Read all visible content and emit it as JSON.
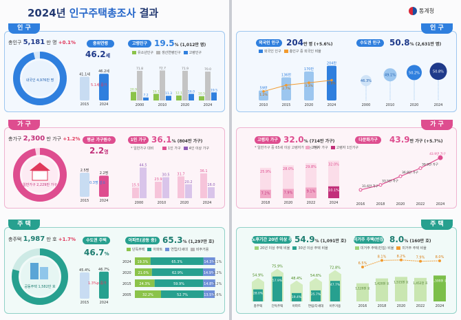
{
  "header": {
    "title_prefix": "2024년 ",
    "title_highlight": "인구주택총조사",
    "title_suffix": " 결과",
    "org": "통계청"
  },
  "sections": {
    "population": "인 구",
    "household": "가 구",
    "housing": "주 택"
  },
  "pop": {
    "kpi_label": "총인구",
    "kpi_value": "5,181",
    "kpi_unit": "만 명",
    "kpi_change": "+0.1%",
    "donut_label": "내국인 4,976만 명",
    "core_pill": "중위연령",
    "core_value": "46.2",
    "core_unit": "세",
    "core_note": "5.1세 증가",
    "aging_pill": "고령인구",
    "aging_value": "19.5",
    "aging_unit": "% (1,012만 명)",
    "aging_legend": [
      "유소년인구",
      "생산연령인구",
      "고령인구"
    ],
    "foreign_pill": "외국인 인구",
    "foreign_value": "204",
    "foreign_unit": "만 명 (+5.6%)",
    "foreign_legend": [
      "외국인 인구",
      "총인구 중 외국인 비율"
    ],
    "metro_pill": "수도권 인구",
    "metro_value": "50.8",
    "metro_unit": "% (2,631만 명)"
  },
  "hh": {
    "kpi_label": "총가구",
    "kpi_value": "2,300",
    "kpi_unit": "만 가구",
    "kpi_change": "+1.2%",
    "donut_label": "일반가구 2,229만 가구",
    "size_pill": "평균 가구원수",
    "size_value": "2.2",
    "size_unit": "명",
    "size_note": "0.3명 감소",
    "one_pill": "1인 가구",
    "one_value": "36.1",
    "one_unit": "% (804만 가구)",
    "one_note": "* 일반가구 대비",
    "one_legend": [
      "1인 가구",
      "4인 이상 가구"
    ],
    "elder_pill": "고령자 가구",
    "elder_value": "32.0",
    "elder_unit": "% (714만 가구)",
    "elder_note": "* 일반가구 중 65세 이상 고령자가 있는 가구",
    "elder_legend": [
      "고령자 가구",
      "고령자 1인가구"
    ],
    "multi_pill": "다문화가구",
    "multi_value": "43.9",
    "multi_unit": "만 가구 (+5.7%)"
  },
  "hs": {
    "kpi_label": "총주택",
    "kpi_value": "1,987",
    "kpi_unit": "만 호",
    "kpi_change": "+1.7%",
    "donut_label": "공동주택 1,582만 호",
    "apt_pill": "수도권 주택",
    "apt_value": "46.7",
    "apt_unit": "%",
    "apt_note": "1.3%p 증가",
    "share_pill": "아파트(공동 중)",
    "share_value": "65.3",
    "share_unit": "% (1,297만 호)",
    "share_legend": [
      "단독주택",
      "아파트",
      "연립/다세대",
      "비주거용"
    ],
    "old_pill": "노후기간 20년 이상 주택",
    "old_value": "54.9",
    "old_unit": "% (1,091만 호)",
    "old_legend": [
      "20년 이상 주택 비율",
      "30년 이상 주택 비율"
    ],
    "vacant_pill": "미거주 주택(빈집)",
    "vacant_value": "8.0",
    "vacant_unit": "% (160만 호)",
    "vacant_legend": [
      "미거주 주택(빈집) 비율",
      "미거주 주택 비율"
    ]
  },
  "colors": {
    "blue": "#2f7fde",
    "pink": "#de4d8f",
    "teal": "#27a08f",
    "navy": "#1f3a8a",
    "orange": "#f29a2e",
    "gray": "#b7b7b7",
    "green": "#8bc34a",
    "purple": "#8e5bb5"
  },
  "chart_data": [
    {
      "type": "bar",
      "title": "중위연령",
      "categories": [
        "2015",
        "2024"
      ],
      "values": [
        41.1,
        46.2
      ],
      "labels": [
        "41.1세",
        "46.2세"
      ]
    },
    {
      "type": "bar",
      "title": "고령인구",
      "categories": [
        "2000",
        "2010",
        "2020",
        "2024"
      ],
      "series": [
        {
          "name": "유소년인구",
          "values": [
            20.9,
            16.1,
            12.1,
            10.5
          ]
        },
        {
          "name": "생산연령인구",
          "values": [
            71.8,
            72.7,
            71.9,
            70.0
          ]
        },
        {
          "name": "고령인구",
          "values": [
            7.2,
            11.3,
            16.0,
            19.5
          ]
        }
      ]
    },
    {
      "type": "bar",
      "title": "외국인 인구",
      "categories": [
        "2010",
        "2015",
        "2020",
        "2024"
      ],
      "values": [
        59,
        136,
        170,
        204
      ],
      "labels": [
        "59만",
        "136만",
        "170만",
        "204만"
      ],
      "ratio": [
        1.2,
        2.7,
        3.3,
        3.9
      ]
    },
    {
      "type": "scatter",
      "title": "수도권 인구",
      "categories": [
        "2000",
        "2010",
        "2020",
        "2024"
      ],
      "values": [
        46.3,
        49.1,
        50.2,
        50.8
      ]
    },
    {
      "type": "bar",
      "title": "평균 가구원수",
      "categories": [
        "2015",
        "2024"
      ],
      "values": [
        2.5,
        2.2
      ],
      "labels": [
        "2.5명",
        "2.2명"
      ]
    },
    {
      "type": "bar",
      "title": "1인 가구",
      "categories": [
        "2000",
        "2010",
        "2020",
        "2024"
      ],
      "series": [
        {
          "name": "1인 가구",
          "values": [
            15.5,
            23.9,
            31.7,
            36.1
          ]
        },
        {
          "name": "4인 이상 가구",
          "values": [
            44.5,
            30.5,
            20.2,
            16.0
          ]
        }
      ]
    },
    {
      "type": "bar",
      "title": "고령자 가구",
      "categories": [
        "2018",
        "2020",
        "2022",
        "2024"
      ],
      "series": [
        {
          "name": "고령자 가구",
          "values": [
            25.9,
            28.0,
            29.8,
            32.0
          ]
        },
        {
          "name": "고령자 1인가구",
          "values": [
            7.2,
            7.9,
            9.1,
            10.1
          ]
        }
      ]
    },
    {
      "type": "line",
      "title": "다문화가구",
      "categories": [
        "2016",
        "2018",
        "2020",
        "2022",
        "2024"
      ],
      "values": [
        31.6,
        33.5,
        36.8,
        39.9,
        43.9
      ],
      "labels": [
        "31.6만 가구",
        "33.5만 가구",
        "36.8만 가구",
        "39.9만 가구",
        "43.9만 가구"
      ]
    },
    {
      "type": "bar",
      "title": "수도권 주택",
      "categories": [
        "2015",
        "2024"
      ],
      "values": [
        45.4,
        46.7
      ],
      "labels": [
        "45.4%",
        "46.7%"
      ]
    },
    {
      "type": "bar",
      "title": "아파트(공동 중)",
      "categories": [
        "2024",
        "2020",
        "2015",
        "2005"
      ],
      "series": [
        {
          "name": "단독주택",
          "values": [
            19.3,
            21.0,
            24.3,
            32.2
          ]
        },
        {
          "name": "아파트",
          "values": [
            65.3,
            62.9,
            59.9,
            52.7
          ]
        },
        {
          "name": "연립/다세대",
          "values": [
            14.3,
            14.9,
            14.8,
            13.5
          ]
        },
        {
          "name": "비주거용",
          "values": [
            1.1,
            1.2,
            1.2,
            1.6
          ]
        }
      ]
    },
    {
      "type": "bar",
      "title": "노후기간 20년 이상 주택",
      "categories": [
        "총주택",
        "단독주택",
        "아파트",
        "연립/다세대",
        "비주거용"
      ],
      "series": [
        {
          "name": "20년 이상 주택 비율",
          "values": [
            54.9,
            75.9,
            48.4,
            54.6,
            72.8
          ]
        },
        {
          "name": "30년 이상 주택 비율",
          "values": [
            28.0,
            57.9,
            19.4,
            25.7,
            47.7
          ]
        }
      ]
    },
    {
      "type": "bar",
      "title": "미거주 주택(빈집)",
      "categories": [
        "2016",
        "2018",
        "2020",
        "2022",
        "2024"
      ],
      "series": [
        {
          "name": "미거주 주택(빈집)",
          "values": [
            1120,
            1420,
            1515,
            1452,
            1599
          ],
          "labels": [
            "1,120천 호",
            "1,420천 호",
            "1,515천 호",
            "1,452천 호",
            "1,599천 호"
          ]
        },
        {
          "name": "미거주 주택 비율",
          "values": [
            6.5,
            8.1,
            8.2,
            7.9,
            8.0
          ]
        }
      ]
    }
  ]
}
